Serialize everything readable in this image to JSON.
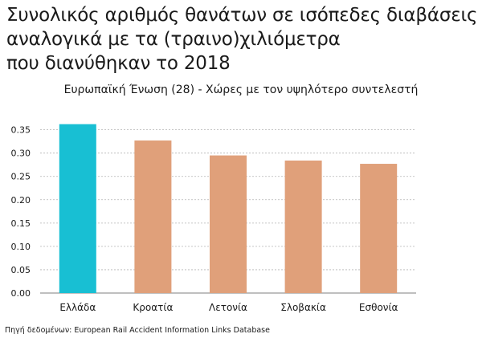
{
  "title_lines": [
    "Συνολικός αριθμός θανάτων σε ισόπεδες διαβάσεις",
    "αναλογικά με τα (τραινο)χιλιόμετρα",
    "που διανύθηκαν το 2018"
  ],
  "subtitle": "Ευρωπαϊκή Ένωση (28) - Χώρες με τον υψηλότερο συντελεστή",
  "source": "Πηγή δεδομένων: European Rail Accident Information Links Database",
  "colors": {
    "highlight": "#18bfd3",
    "bar": "#e0a07a",
    "grid": "#b3b3b3",
    "text": "#1a1a1a"
  },
  "chart_data": {
    "type": "bar",
    "categories": [
      "Ελλάδα",
      "Κροατία",
      "Λετονία",
      "Σλοβακία",
      "Εσθονία"
    ],
    "values": [
      0.362,
      0.327,
      0.295,
      0.284,
      0.277
    ],
    "highlight_index": 0,
    "yticks": [
      0.0,
      0.05,
      0.1,
      0.15,
      0.2,
      0.25,
      0.3,
      0.35
    ],
    "ytick_labels": [
      "0.00",
      "0.05",
      "0.10",
      "0.15",
      "0.20",
      "0.25",
      "0.30",
      "0.35"
    ],
    "ylim": [
      0,
      0.37
    ],
    "grid": true,
    "xlabel": "",
    "ylabel": ""
  }
}
